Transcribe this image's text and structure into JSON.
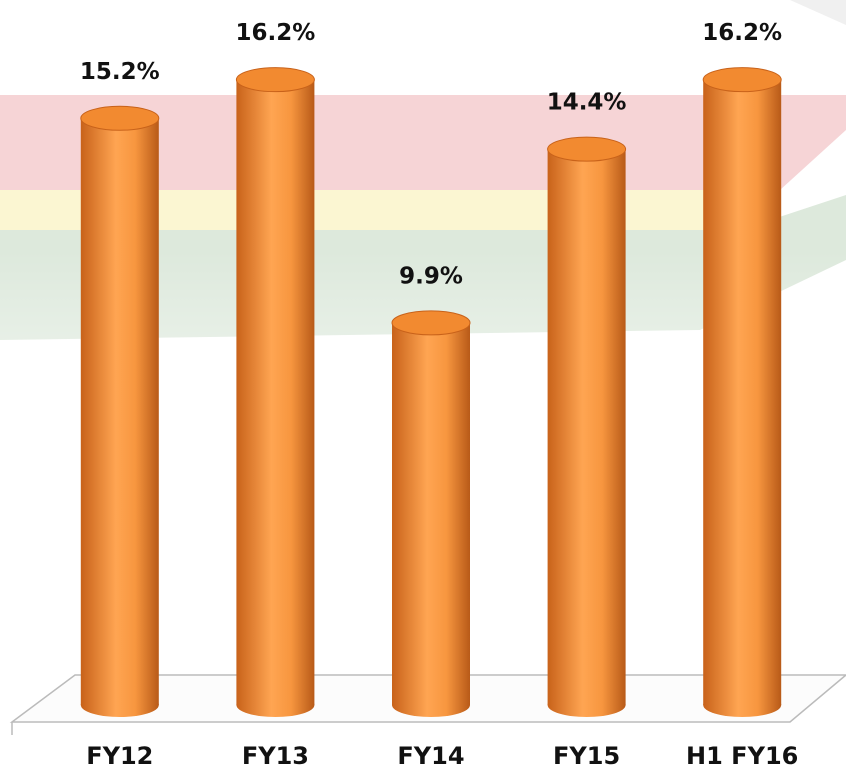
{
  "chart_data": {
    "type": "bar",
    "style": "cylinder",
    "categories": [
      "FY12",
      "FY13",
      "FY14",
      "FY15",
      "H1 FY16"
    ],
    "values": [
      15.2,
      16.2,
      9.9,
      14.4,
      16.2
    ],
    "value_labels": [
      "15.2%",
      "16.2%",
      "9.9%",
      "14.4%",
      "16.2%"
    ],
    "color": "#f28a30"
  }
}
